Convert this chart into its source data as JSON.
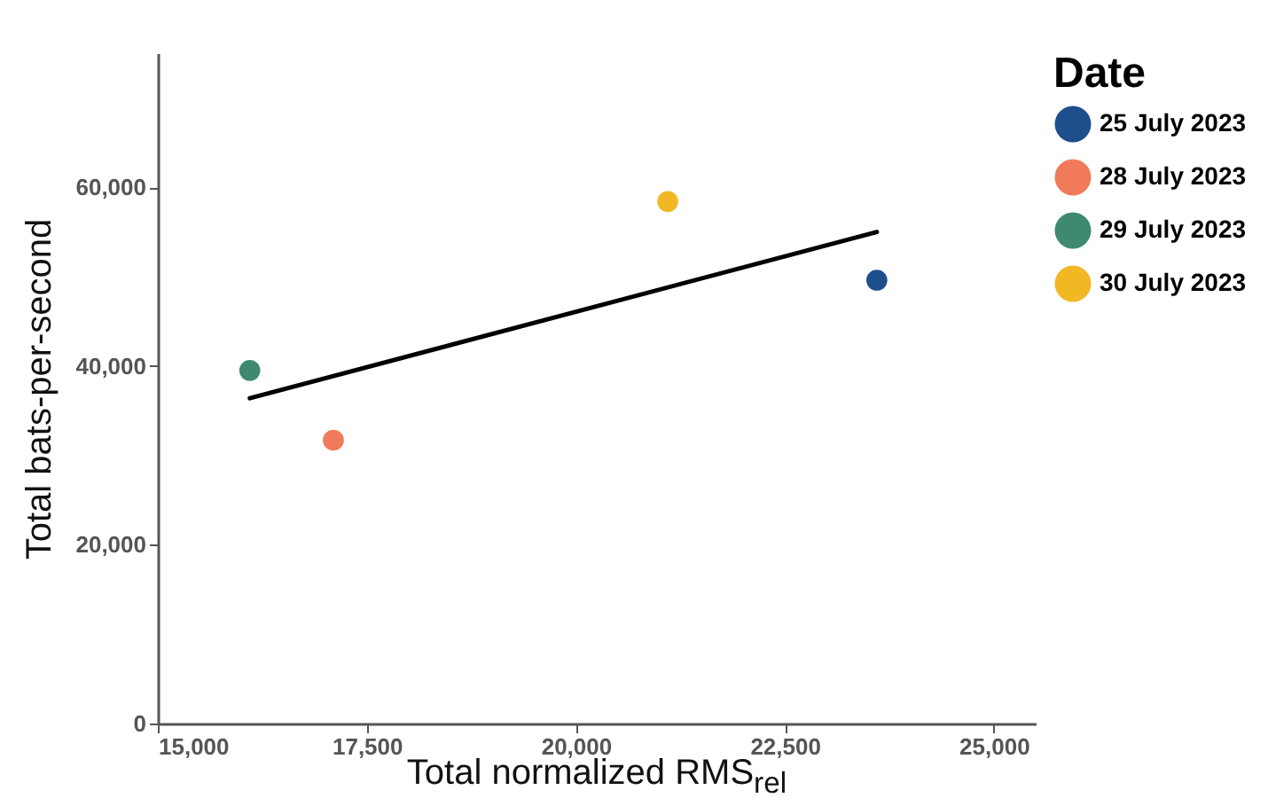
{
  "chart_data": {
    "type": "scatter",
    "xlabel": "Total normalized RMS$_{rel}$",
    "ylabel": "Total bats-per-second",
    "legend_title": "Date",
    "xlim": [
      15000,
      25500
    ],
    "xticks": [
      {
        "value": 15000,
        "label": "15,000"
      },
      {
        "value": 17500,
        "label": "17,500"
      },
      {
        "value": 20000,
        "label": "20,000"
      },
      {
        "value": 22500,
        "label": "22,500"
      },
      {
        "value": 25000,
        "label": "25,000"
      }
    ],
    "ylim": [
      0,
      75000
    ],
    "yticks": [
      0,
      {
        "value": 20000,
        "label": "20,000"
      },
      {
        "value": 40000,
        "label": "40,000"
      },
      {
        "value": 60000,
        "label": "60,000"
      }
    ],
    "grid": false,
    "legend": "right",
    "marker": "circle",
    "series": [
      {
        "name": "25 July 2023",
        "color": "#1f4e8c",
        "x": [
          23600
        ],
        "values": [
          49600
        ]
      },
      {
        "name": "28 July 2023",
        "color": "#f07a5a",
        "x": [
          17100
        ],
        "values": [
          31700
        ]
      },
      {
        "name": "29 July 2023",
        "color": "#3f8a6e",
        "x": [
          16100
        ],
        "values": [
          39500
        ]
      },
      {
        "name": "30 July 2023",
        "color": "#f2b824",
        "x": [
          21100
        ],
        "values": [
          58400
        ]
      },
      {
        "type": "line",
        "color": "#000000",
        "line_style": "solid",
        "marker": "none",
        "x": [
          16100,
          23600
        ],
        "values": [
          36400,
          55000
        ]
      }
    ]
  }
}
